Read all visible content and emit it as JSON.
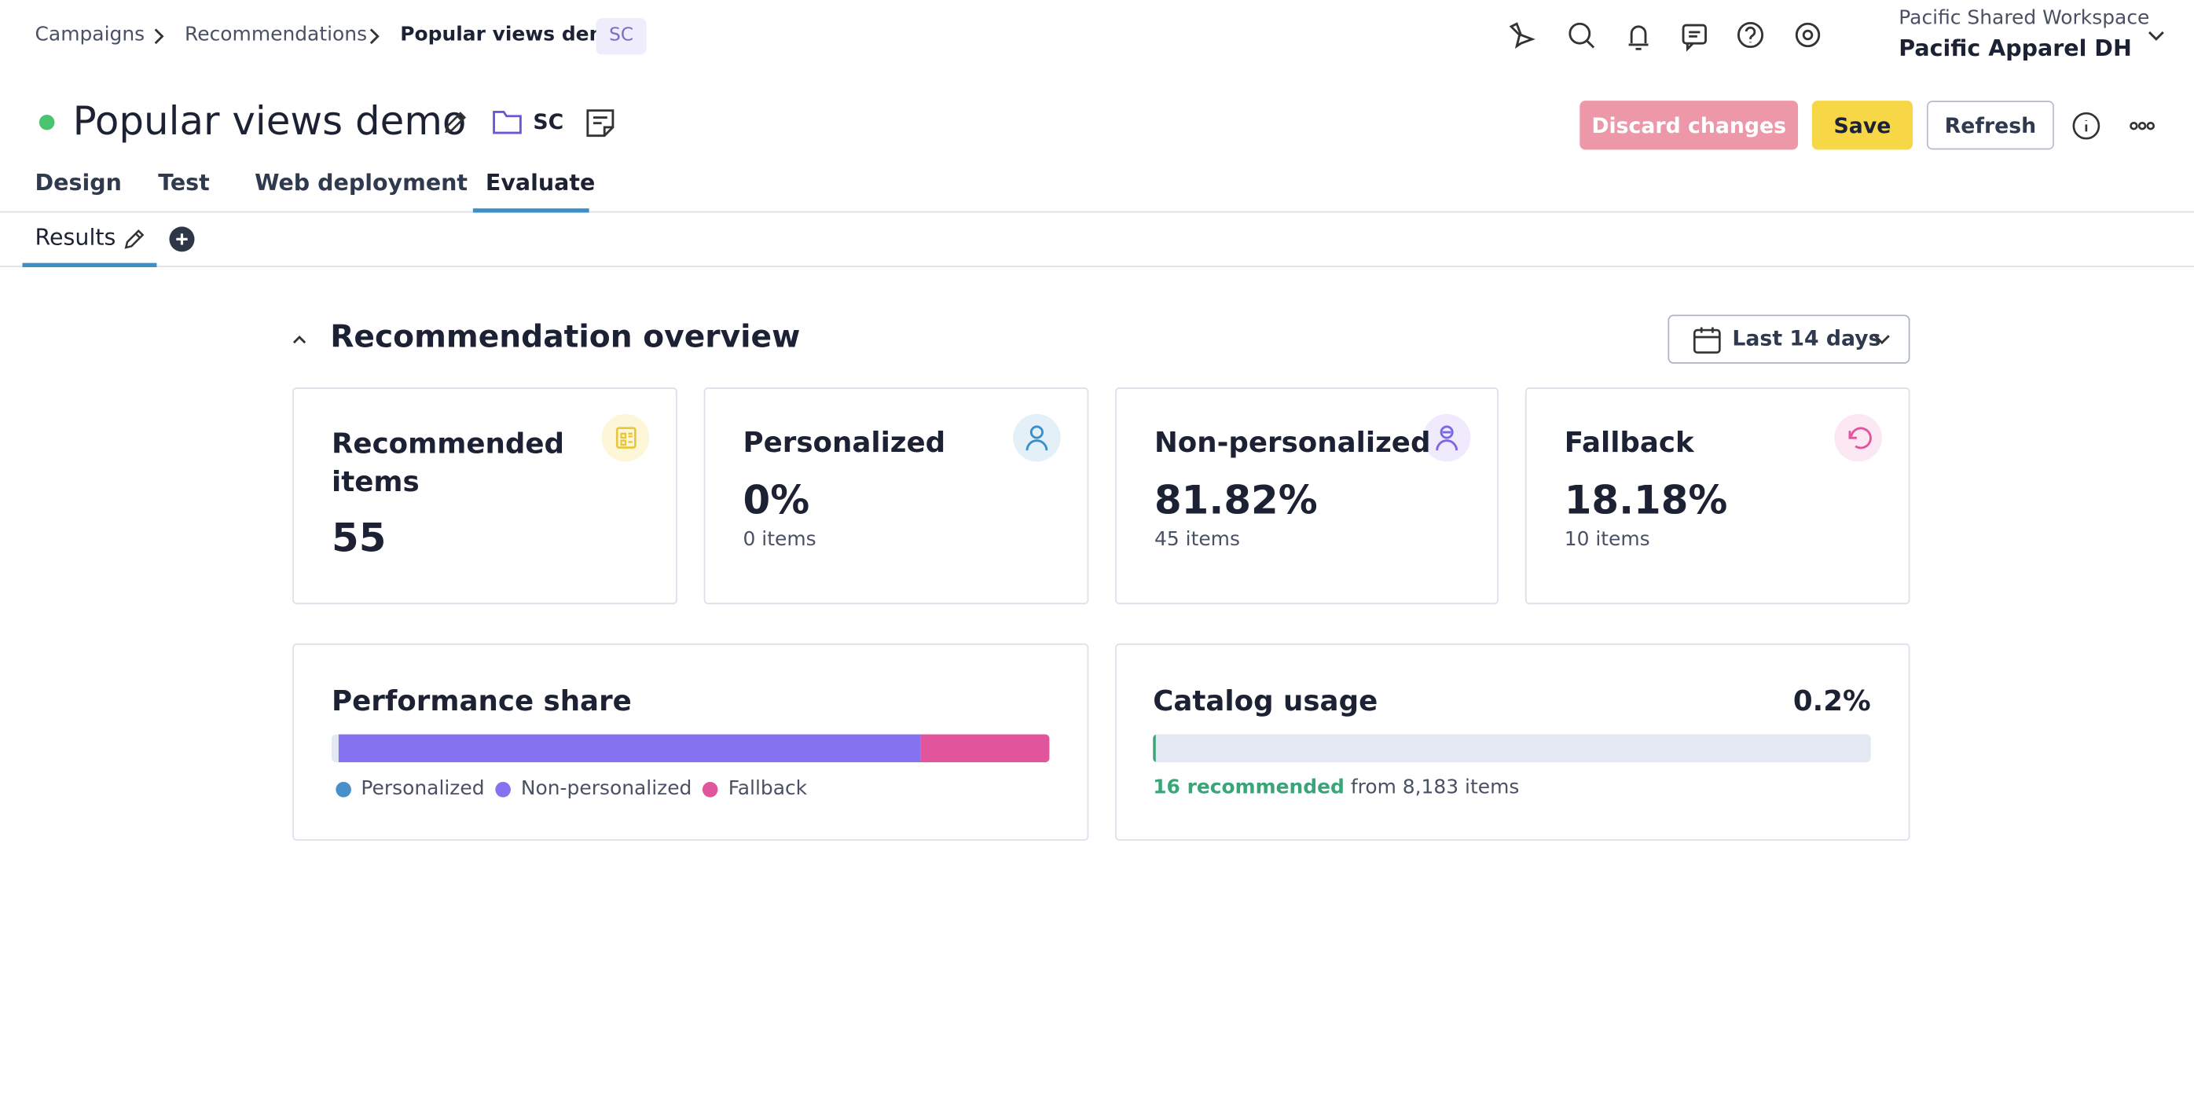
{
  "breadcrumbs": [
    "Campaigns",
    "Recommendations",
    "Popular views demo"
  ],
  "breadcrumb_badge": "SC",
  "workspace": {
    "label": "Pacific Shared Workspace",
    "name": "Pacific Apparel DH"
  },
  "campaign": {
    "title": "Popular views demo",
    "folder": "SC"
  },
  "actions": [
    "Discard changes",
    "Save",
    "Refresh"
  ],
  "tabs": [
    "Design",
    "Test",
    "Web deployment",
    "Evaluate"
  ],
  "subtabs": [
    "Results"
  ],
  "section": {
    "title": "Recommendation overview",
    "date_range": "Last 14 days"
  },
  "cards": [
    {
      "title": "Recommended items",
      "value": 55
    },
    {
      "title": "Personalized",
      "value": 0,
      "value_label": "0%",
      "detail": "0 items"
    },
    {
      "title": "Non-personalized",
      "value": 81.82,
      "value_label": "81.82%",
      "detail": "45 items"
    },
    {
      "title": "Fallback",
      "value": 18.18,
      "value_label": "18.18%",
      "detail": "10 items"
    }
  ],
  "performance_share": {
    "title": "Performance share",
    "legend": [
      {
        "name": "Personalized",
        "color": "#4a90c8"
      },
      {
        "name": "Non-personalized",
        "color": "#8572f0"
      },
      {
        "name": "Fallback",
        "color": "#e0559c"
      }
    ]
  },
  "catalog_usage": {
    "title": "Catalog usage",
    "value": 0.2,
    "value_label": "0.2%",
    "recommended": "16 recommended",
    "detail": "from 8,183 items"
  }
}
